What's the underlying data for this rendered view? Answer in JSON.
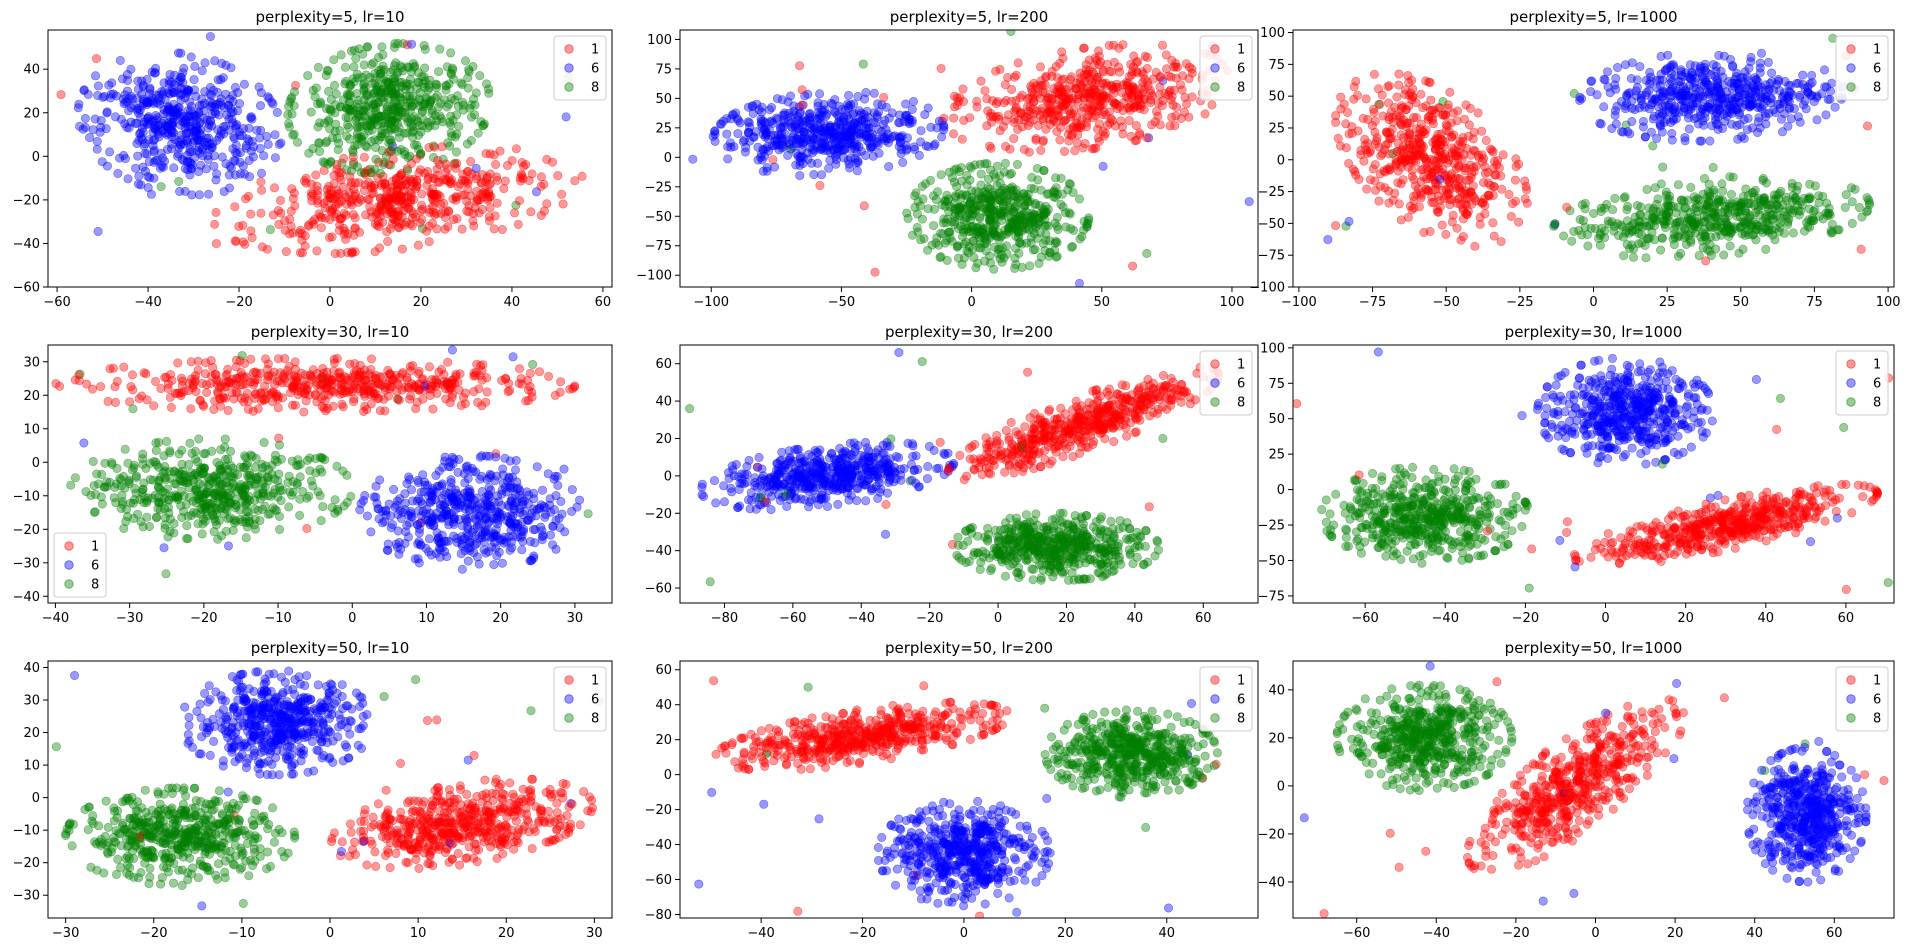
{
  "figure": {
    "rows": 3,
    "cols": 3
  },
  "legend_entries": [
    {
      "label": "1",
      "color": "#ff0000"
    },
    {
      "label": "6",
      "color": "#0000ff"
    },
    {
      "label": "8",
      "color": "#008000"
    }
  ],
  "chart_data": [
    {
      "type": "scatter",
      "title": "perplexity=5, lr=10",
      "xlim": [
        -62,
        62
      ],
      "ylim": [
        -60,
        58
      ],
      "xticks": [
        -60,
        -40,
        -20,
        0,
        20,
        40,
        60
      ],
      "yticks": [
        -60,
        -40,
        -20,
        0,
        20,
        40
      ],
      "legend": "upper right",
      "marker_alpha": 0.4,
      "series": [
        {
          "name": "1",
          "color": "#ff0000",
          "points": 500,
          "clusters": [
            {
              "cx": 15,
              "cy": -20,
              "rx": 42,
              "ry": 22,
              "rot": 18
            }
          ]
        },
        {
          "name": "6",
          "color": "#0000ff",
          "points": 500,
          "clusters": [
            {
              "cx": -33,
              "cy": 15,
              "rx": 22,
              "ry": 33,
              "rot": 10
            }
          ]
        },
        {
          "name": "8",
          "color": "#008000",
          "points": 500,
          "clusters": [
            {
              "cx": 13,
              "cy": 22,
              "rx": 22,
              "ry": 30,
              "rot": -10
            }
          ]
        }
      ]
    },
    {
      "type": "scatter",
      "title": "perplexity=5, lr=200",
      "xlim": [
        -112,
        110
      ],
      "ylim": [
        -110,
        108
      ],
      "xticks": [
        -100,
        -50,
        0,
        50,
        100
      ],
      "yticks": [
        -100,
        -75,
        -50,
        -25,
        0,
        25,
        50,
        75,
        100
      ],
      "legend": "upper right",
      "marker_alpha": 0.4,
      "series": [
        {
          "name": "1",
          "color": "#ff0000",
          "points": 500,
          "clusters": [
            {
              "cx": 45,
              "cy": 50,
              "rx": 60,
              "ry": 40,
              "rot": 30
            }
          ]
        },
        {
          "name": "6",
          "color": "#0000ff",
          "points": 500,
          "clusters": [
            {
              "cx": -55,
              "cy": 20,
              "rx": 45,
              "ry": 35,
              "rot": 15
            }
          ]
        },
        {
          "name": "8",
          "color": "#008000",
          "points": 500,
          "clusters": [
            {
              "cx": 10,
              "cy": -50,
              "rx": 35,
              "ry": 45,
              "rot": 0
            }
          ]
        }
      ]
    },
    {
      "type": "scatter",
      "title": "perplexity=5, lr=1000",
      "xlim": [
        -102,
        102
      ],
      "ylim": [
        -100,
        102
      ],
      "xticks": [
        -100,
        -75,
        -50,
        -25,
        0,
        25,
        50,
        75,
        100
      ],
      "yticks": [
        -100,
        -75,
        -50,
        -25,
        0,
        25,
        50,
        75,
        100
      ],
      "legend": "upper right",
      "marker_alpha": 0.4,
      "series": [
        {
          "name": "1",
          "color": "#ff0000",
          "points": 500,
          "clusters": [
            {
              "cx": -55,
              "cy": 0,
              "rx": 28,
              "ry": 70,
              "rot": 15
            }
          ]
        },
        {
          "name": "6",
          "color": "#0000ff",
          "points": 500,
          "clusters": [
            {
              "cx": 40,
              "cy": 50,
              "rx": 45,
              "ry": 35,
              "rot": 10
            }
          ]
        },
        {
          "name": "8",
          "color": "#008000",
          "points": 500,
          "clusters": [
            {
              "cx": 40,
              "cy": -45,
              "rx": 55,
              "ry": 30,
              "rot": 15
            }
          ]
        }
      ]
    },
    {
      "type": "scatter",
      "title": "perplexity=30, lr=10",
      "xlim": [
        -41,
        35
      ],
      "ylim": [
        -42,
        35
      ],
      "xticks": [
        -40,
        -30,
        -20,
        -10,
        0,
        10,
        20,
        30
      ],
      "yticks": [
        -40,
        -30,
        -20,
        -10,
        0,
        10,
        20,
        30
      ],
      "legend": "lower left",
      "marker_alpha": 0.4,
      "series": [
        {
          "name": "1",
          "color": "#ff0000",
          "points": 500,
          "clusters": [
            {
              "cx": -5,
              "cy": 23,
              "rx": 35,
              "ry": 8,
              "rot": 0
            }
          ]
        },
        {
          "name": "6",
          "color": "#0000ff",
          "points": 500,
          "clusters": [
            {
              "cx": 16,
              "cy": -15,
              "rx": 15,
              "ry": 17,
              "rot": 0
            }
          ]
        },
        {
          "name": "8",
          "color": "#008000",
          "points": 500,
          "clusters": [
            {
              "cx": -19,
              "cy": -8,
              "rx": 19,
              "ry": 15,
              "rot": 0
            }
          ]
        }
      ]
    },
    {
      "type": "scatter",
      "title": "perplexity=30, lr=200",
      "xlim": [
        -93,
        76
      ],
      "ylim": [
        -68,
        70
      ],
      "xticks": [
        -80,
        -60,
        -40,
        -20,
        0,
        20,
        40,
        60
      ],
      "yticks": [
        -60,
        -40,
        -20,
        0,
        20,
        40,
        60
      ],
      "legend": "upper right",
      "marker_alpha": 0.4,
      "series": [
        {
          "name": "1",
          "color": "#ff0000",
          "points": 500,
          "clusters": [
            {
              "cx": 25,
              "cy": 28,
              "rx": 48,
              "ry": 13,
              "rot": 36
            }
          ]
        },
        {
          "name": "6",
          "color": "#0000ff",
          "points": 500,
          "clusters": [
            {
              "cx": -50,
              "cy": 0,
              "rx": 38,
              "ry": 16,
              "rot": 14
            }
          ]
        },
        {
          "name": "8",
          "color": "#008000",
          "points": 500,
          "clusters": [
            {
              "cx": 17,
              "cy": -38,
              "rx": 30,
              "ry": 18,
              "rot": 0
            }
          ]
        }
      ]
    },
    {
      "type": "scatter",
      "title": "perplexity=30, lr=1000",
      "xlim": [
        -78,
        72
      ],
      "ylim": [
        -80,
        102
      ],
      "xticks": [
        -60,
        -40,
        -20,
        0,
        20,
        40,
        60
      ],
      "yticks": [
        -75,
        -50,
        -25,
        0,
        25,
        50,
        75,
        100
      ],
      "legend": "upper right",
      "marker_alpha": 0.4,
      "series": [
        {
          "name": "1",
          "color": "#ff0000",
          "points": 500,
          "clusters": [
            {
              "cx": 30,
              "cy": -25,
              "rx": 45,
              "ry": 15,
              "rot": 35
            }
          ]
        },
        {
          "name": "6",
          "color": "#0000ff",
          "points": 500,
          "clusters": [
            {
              "cx": 5,
              "cy": 55,
              "rx": 22,
              "ry": 38,
              "rot": 0
            }
          ]
        },
        {
          "name": "8",
          "color": "#008000",
          "points": 500,
          "clusters": [
            {
              "cx": -45,
              "cy": -18,
              "rx": 26,
              "ry": 34,
              "rot": 0
            }
          ]
        }
      ]
    },
    {
      "type": "scatter",
      "title": "perplexity=50, lr=10",
      "xlim": [
        -32,
        32
      ],
      "ylim": [
        -37,
        42
      ],
      "xticks": [
        -30,
        -20,
        -10,
        0,
        10,
        20,
        30
      ],
      "yticks": [
        -30,
        -20,
        -10,
        0,
        10,
        20,
        30,
        40
      ],
      "legend": "upper right",
      "marker_alpha": 0.4,
      "series": [
        {
          "name": "1",
          "color": "#ff0000",
          "points": 500,
          "clusters": [
            {
              "cx": 15,
              "cy": -8,
              "rx": 17,
              "ry": 11,
              "rot": 40
            }
          ]
        },
        {
          "name": "6",
          "color": "#0000ff",
          "points": 500,
          "clusters": [
            {
              "cx": -6,
              "cy": 23,
              "rx": 11,
              "ry": 16,
              "rot": 0
            }
          ]
        },
        {
          "name": "8",
          "color": "#008000",
          "points": 500,
          "clusters": [
            {
              "cx": -17,
              "cy": -12,
              "rx": 13,
              "ry": 15,
              "rot": 0
            }
          ]
        }
      ]
    },
    {
      "type": "scatter",
      "title": "perplexity=50, lr=200",
      "xlim": [
        -56,
        58
      ],
      "ylim": [
        -82,
        65
      ],
      "xticks": [
        -40,
        -20,
        0,
        20,
        40
      ],
      "yticks": [
        -80,
        -60,
        -40,
        -20,
        0,
        20,
        40,
        60
      ],
      "legend": "upper right",
      "marker_alpha": 0.4,
      "series": [
        {
          "name": "1",
          "color": "#ff0000",
          "points": 500,
          "clusters": [
            {
              "cx": -20,
              "cy": 22,
              "rx": 32,
              "ry": 14,
              "rot": 28
            }
          ]
        },
        {
          "name": "6",
          "color": "#0000ff",
          "points": 500,
          "clusters": [
            {
              "cx": 0,
              "cy": -45,
              "rx": 17,
              "ry": 30,
              "rot": 0
            }
          ]
        },
        {
          "name": "8",
          "color": "#008000",
          "points": 500,
          "clusters": [
            {
              "cx": 33,
              "cy": 12,
              "rx": 17,
              "ry": 25,
              "rot": 0
            }
          ]
        }
      ]
    },
    {
      "type": "scatter",
      "title": "perplexity=50, lr=1000",
      "xlim": [
        -76,
        75
      ],
      "ylim": [
        -55,
        52
      ],
      "xticks": [
        -60,
        -40,
        -20,
        0,
        20,
        40,
        60
      ],
      "yticks": [
        -40,
        -20,
        0,
        20,
        40
      ],
      "legend": "upper right",
      "marker_alpha": 0.4,
      "series": [
        {
          "name": "1",
          "color": "#ff0000",
          "points": 500,
          "clusters": [
            {
              "cx": -5,
              "cy": 0,
              "rx": 43,
              "ry": 14,
              "rot": 55
            }
          ]
        },
        {
          "name": "6",
          "color": "#0000ff",
          "points": 500,
          "clusters": [
            {
              "cx": 53,
              "cy": -12,
              "rx": 15,
              "ry": 28,
              "rot": 0
            }
          ]
        },
        {
          "name": "8",
          "color": "#008000",
          "points": 500,
          "clusters": [
            {
              "cx": -43,
              "cy": 20,
              "rx": 22,
              "ry": 22,
              "rot": 0
            }
          ]
        }
      ]
    }
  ]
}
